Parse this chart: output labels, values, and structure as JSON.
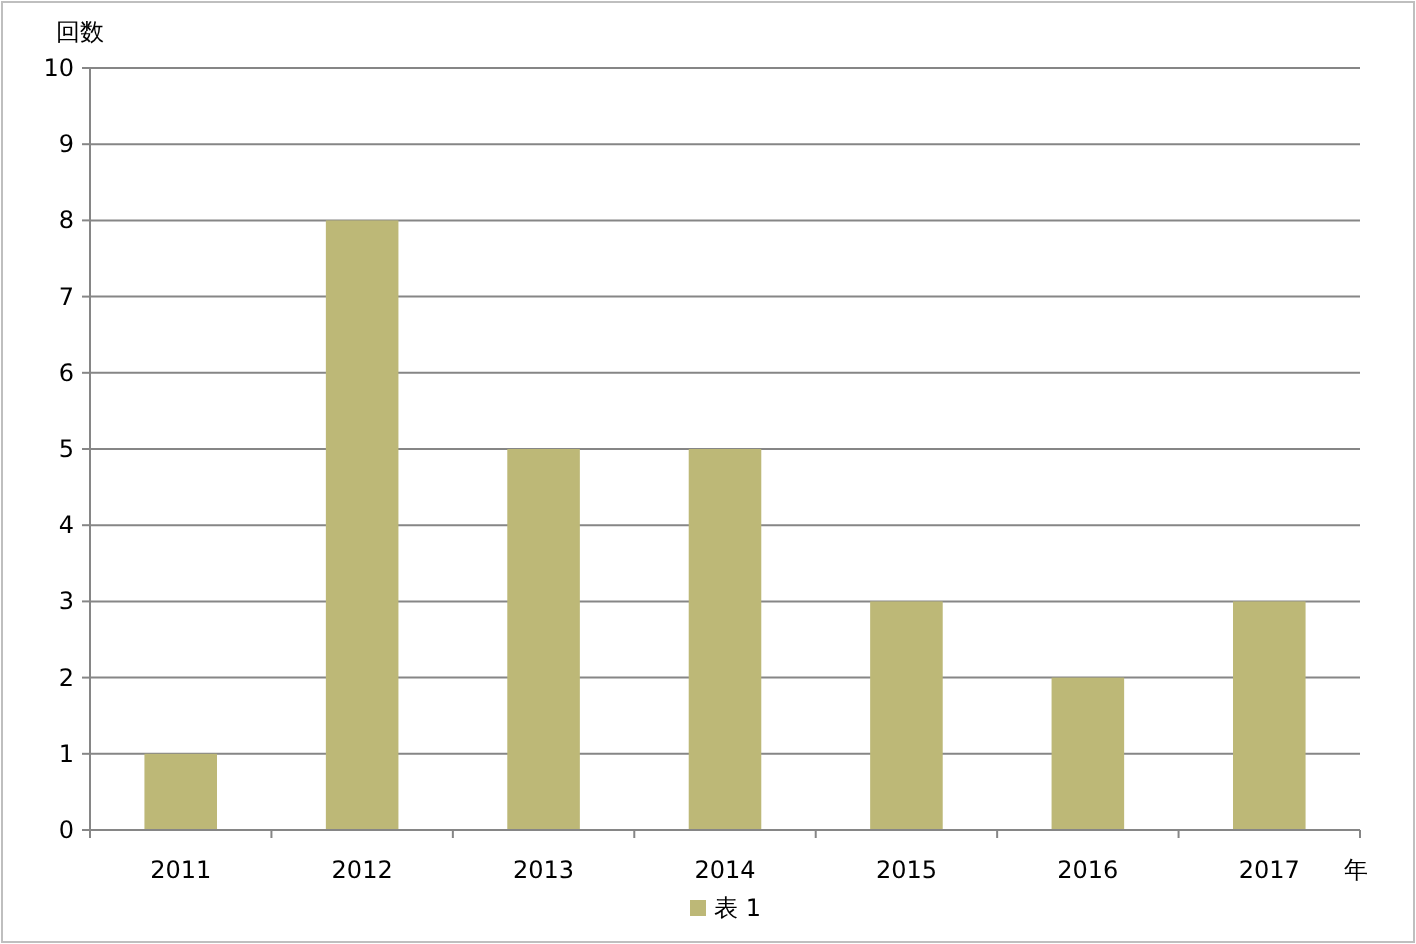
{
  "chart_data": {
    "type": "bar",
    "xlabel": "年",
    "ylabel": "回数",
    "categories": [
      "2011",
      "2012",
      "2013",
      "2014",
      "2015",
      "2016",
      "2017"
    ],
    "series": [
      {
        "name": "表 1",
        "color": "#bdb877",
        "values": [
          1,
          8,
          5,
          5,
          3,
          2,
          3
        ]
      }
    ],
    "ylim": [
      0,
      10
    ],
    "yticks": [
      0,
      1,
      2,
      3,
      4,
      5,
      6,
      7,
      8,
      9,
      10
    ],
    "grid": "y",
    "legend": "bottom"
  }
}
